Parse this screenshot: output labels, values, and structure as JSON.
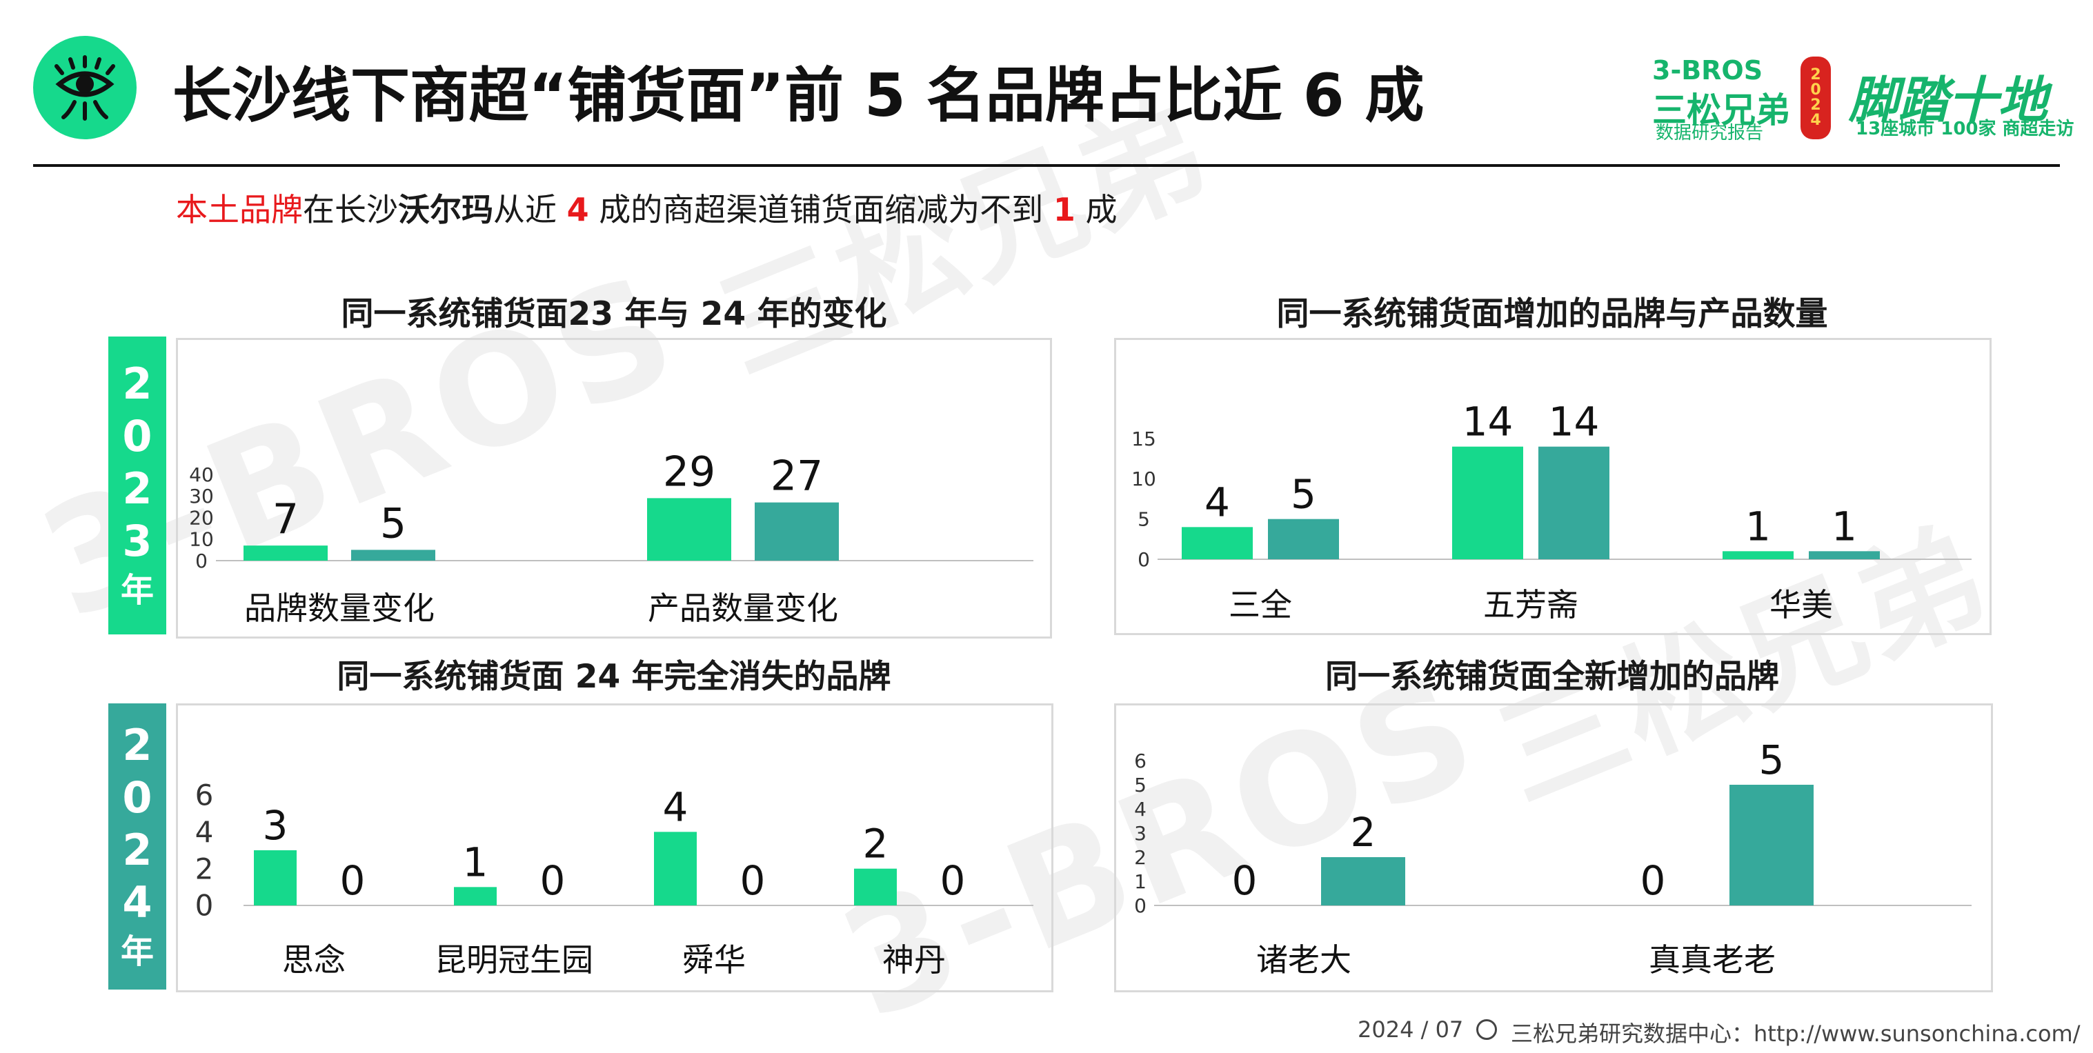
{
  "header": {
    "title": "长沙线下商超“铺货面”前 5 名品牌占比近 6 成",
    "subtitle_parts": [
      "本土品牌",
      "在长沙",
      "沃尔玛",
      "从近 ",
      "4",
      " 成的商超渠道铺货面缩减为不到 ",
      "1",
      " 成"
    ]
  },
  "brand": {
    "line1": "3-BROS",
    "line2": "三松兄弟",
    "line3": "数据研究报告",
    "lantern": "2024",
    "slogan": "脚踏十地",
    "slogan_sub": "13座城市 100家 商超走访"
  },
  "watermark": {
    "text1": "3-BROS",
    "text2": "三松兄弟"
  },
  "year_tabs": [
    {
      "digits": [
        "2",
        "0",
        "2",
        "3"
      ],
      "suffix": "年",
      "color": "#16d98c"
    },
    {
      "digits": [
        "2",
        "0",
        "2",
        "4"
      ],
      "suffix": "年",
      "color": "#36a99b"
    }
  ],
  "colors": {
    "green": "#16d98c",
    "teal": "#36a99b",
    "axis": "#bfbfbf"
  },
  "chart_data": [
    {
      "type": "bar",
      "title": "同一系统铺货面23 年与 24 年的变化",
      "categories": [
        "品牌数量变化",
        "产品数量变化"
      ],
      "series": [
        {
          "values": [
            7,
            29
          ]
        },
        {
          "values": [
            5,
            27
          ]
        }
      ],
      "yticks": [
        "0",
        "10",
        "20",
        "30",
        "40"
      ],
      "ylim": [
        0,
        40
      ],
      "grid": false
    },
    {
      "type": "bar",
      "title": "同一系统铺货面增加的品牌与产品数量",
      "categories": [
        "三全",
        "五芳斋",
        "华美"
      ],
      "series": [
        {
          "values": [
            4,
            14,
            1
          ]
        },
        {
          "values": [
            5,
            14,
            1
          ]
        }
      ],
      "yticks": [
        "0",
        "5",
        "10",
        "15"
      ],
      "ylim": [
        0,
        15
      ],
      "grid": false
    },
    {
      "type": "bar",
      "title": "同一系统铺货面 24 年完全消失的品牌",
      "categories": [
        "思念",
        "昆明冠生园",
        "舜华",
        "神丹"
      ],
      "series": [
        {
          "values": [
            3,
            1,
            4,
            2
          ]
        },
        {
          "values": [
            0,
            0,
            0,
            0
          ]
        }
      ],
      "yticks": [
        "0",
        "2",
        "4",
        "6"
      ],
      "ylim": [
        0,
        6
      ],
      "grid": false
    },
    {
      "type": "bar",
      "title": "同一系统铺货面全新增加的品牌",
      "categories": [
        "诸老大",
        "真真老老"
      ],
      "series": [
        {
          "values": [
            0,
            0
          ]
        },
        {
          "values": [
            2,
            5
          ]
        }
      ],
      "yticks": [
        "0",
        "1",
        "2",
        "3",
        "4",
        "5",
        "6"
      ],
      "ylim": [
        0,
        6
      ],
      "grid": false
    }
  ],
  "footer": {
    "date": "2024 / 07",
    "source": "三松兄弟研究数据中心：http://www.sunsonchina.com/"
  }
}
